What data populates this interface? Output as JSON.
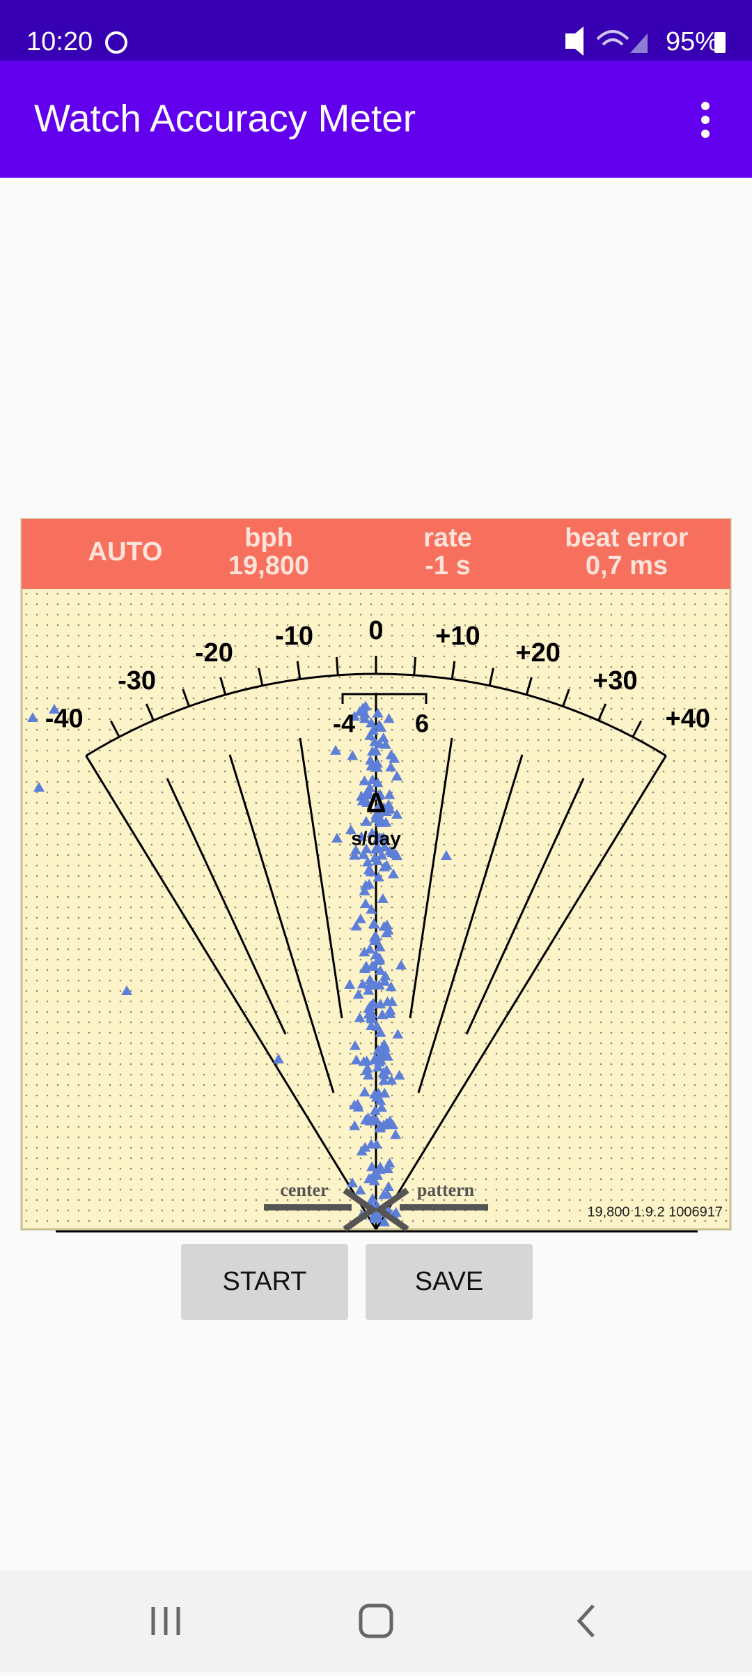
{
  "status_bar": {
    "time": "10:20",
    "battery": "95%"
  },
  "app_bar": {
    "title": "Watch Accuracy Meter"
  },
  "readout": {
    "mode": "AUTO",
    "bph_label": "bph",
    "bph_value": "19,800",
    "rate_label": "rate",
    "rate_value": "-1 s",
    "beat_error_label": "beat error",
    "beat_error_value": "0,7 ms"
  },
  "dial": {
    "scale_labels": [
      "-40",
      "-30",
      "-20",
      "-10",
      "0",
      "+10",
      "+20",
      "+30",
      "+40"
    ],
    "window_labels": [
      "-4",
      "6"
    ],
    "unit": "s/day",
    "center_label": "center",
    "pattern_label": "pattern",
    "version": "19,800 1.9.2 1006917"
  },
  "buttons": [
    "START",
    "SAVE"
  ]
}
